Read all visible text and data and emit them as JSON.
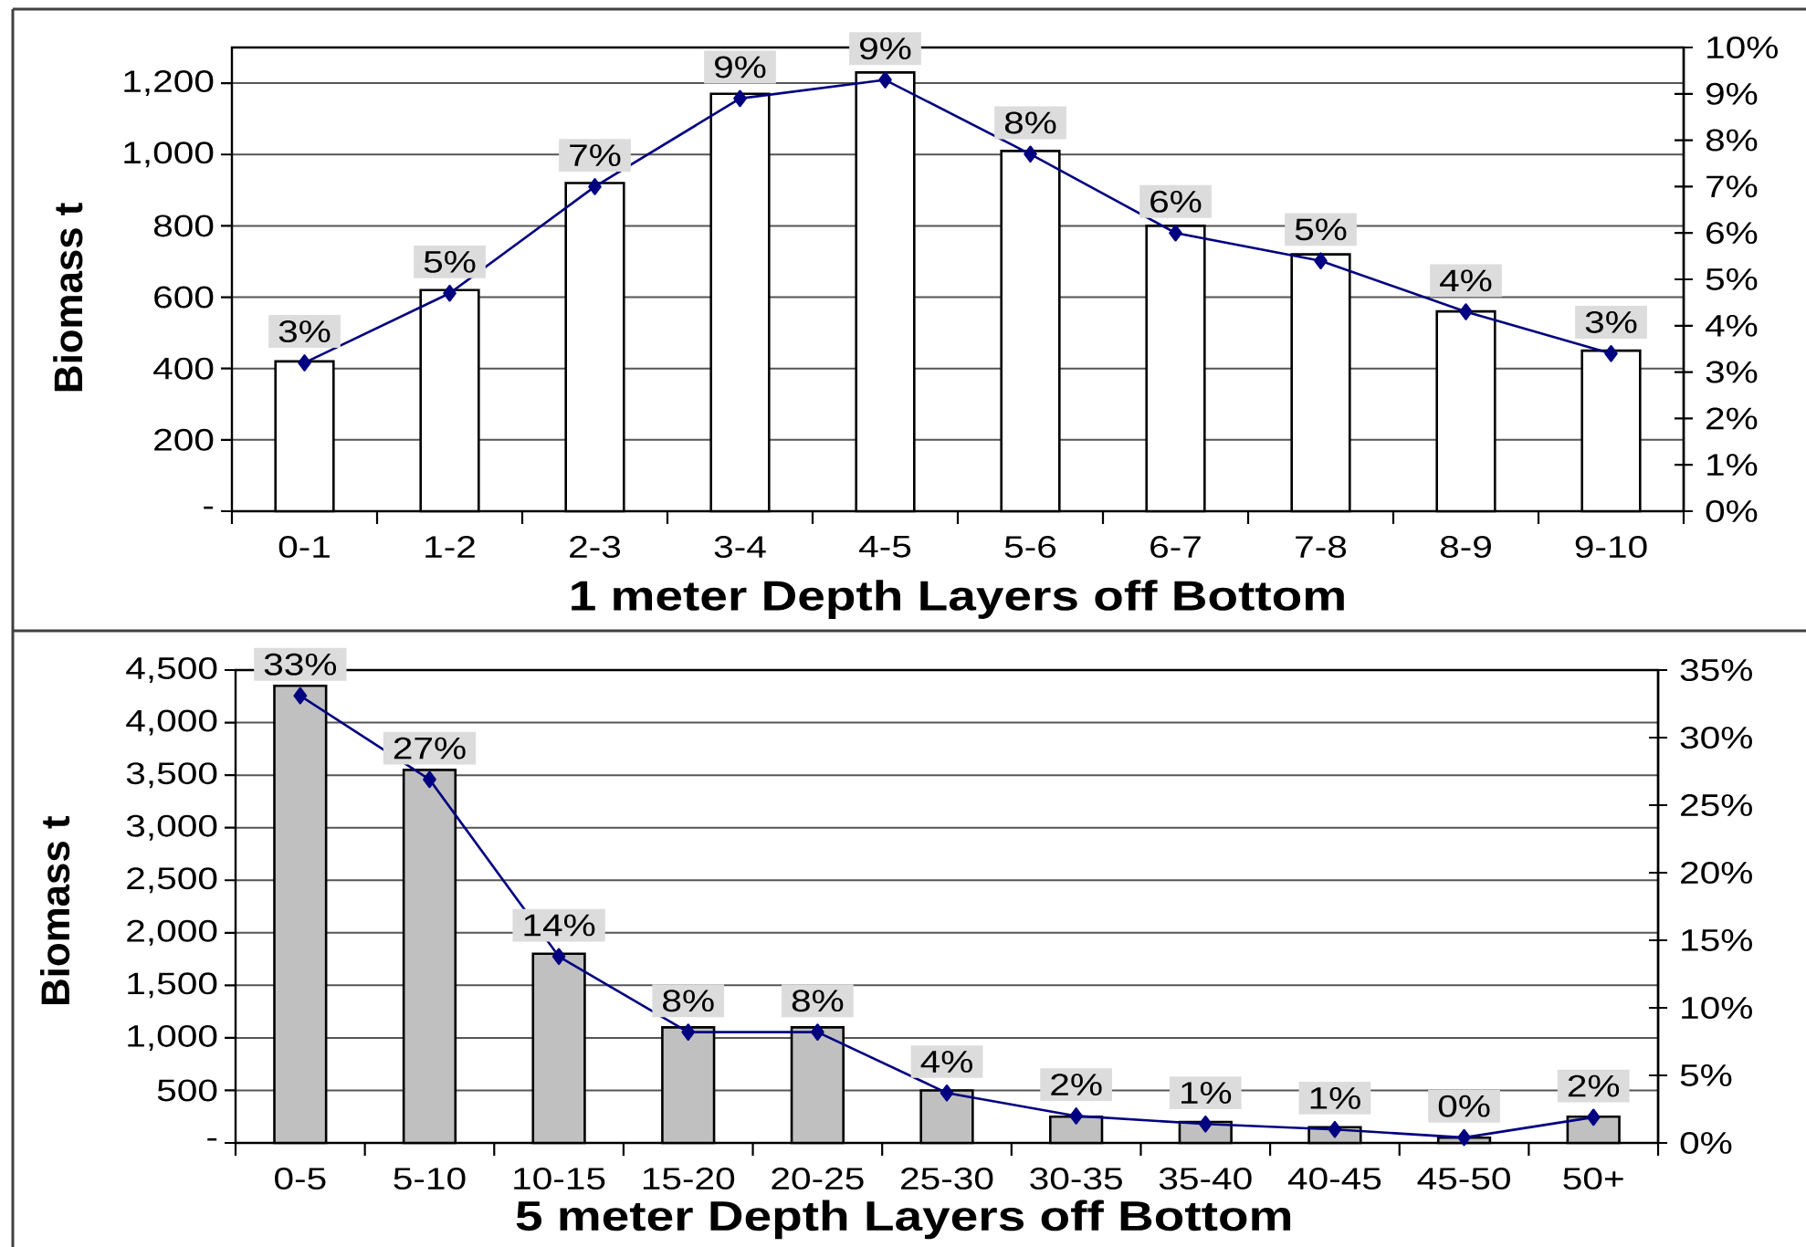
{
  "chart_data": [
    {
      "type": "bar",
      "ylabel": "Biomass t",
      "xlabel": "1 meter Depth Layers off Bottom",
      "categories": [
        "0-1",
        "1-2",
        "2-3",
        "3-4",
        "4-5",
        "5-6",
        "6-7",
        "7-8",
        "8-9",
        "9-10"
      ],
      "series": [
        {
          "color": "#ffffff",
          "values": [
            420,
            620,
            920,
            1170,
            1230,
            1010,
            800,
            720,
            560,
            450
          ]
        },
        {
          "type": "line",
          "axis": "y2",
          "color": "#000080",
          "marker": "diamond",
          "values": [
            3.2,
            4.7,
            7.0,
            8.9,
            9.3,
            7.7,
            6.0,
            5.4,
            4.3,
            3.4
          ],
          "value_labels": [
            "3%",
            "5%",
            "7%",
            "9%",
            "9%",
            "8%",
            "6%",
            "5%",
            "4%",
            "3%"
          ]
        }
      ],
      "ylim": [
        0,
        1300
      ],
      "yticks": [
        {
          "value": 0,
          "label": "-"
        },
        200,
        400,
        600,
        800,
        {
          "value": 1000,
          "label": "1,000"
        },
        {
          "value": 1200,
          "label": "1,200"
        }
      ],
      "y2lim": [
        0,
        10
      ],
      "y2ticks": [
        {
          "value": 0,
          "label": "0%"
        },
        {
          "value": 1,
          "label": "1%"
        },
        {
          "value": 2,
          "label": "2%"
        },
        {
          "value": 3,
          "label": "3%"
        },
        {
          "value": 4,
          "label": "4%"
        },
        {
          "value": 5,
          "label": "5%"
        },
        {
          "value": 6,
          "label": "6%"
        },
        {
          "value": 7,
          "label": "7%"
        },
        {
          "value": 8,
          "label": "8%"
        },
        {
          "value": 9,
          "label": "9%"
        },
        {
          "value": 10,
          "label": "10%"
        }
      ],
      "grid": "y"
    },
    {
      "type": "bar",
      "ylabel": "Biomass t",
      "xlabel": "5 meter Depth Layers off Bottom",
      "categories": [
        "0-5",
        "5-10",
        "10-15",
        "15-20",
        "20-25",
        "25-30",
        "30-35",
        "35-40",
        "40-45",
        "45-50",
        "50+"
      ],
      "series": [
        {
          "color": "#c0c0c0",
          "values": [
            4350,
            3550,
            1800,
            1100,
            1100,
            500,
            250,
            200,
            150,
            50,
            250
          ]
        },
        {
          "type": "line",
          "axis": "y2",
          "color": "#000080",
          "marker": "diamond",
          "values": [
            33.1,
            26.9,
            13.8,
            8.2,
            8.2,
            3.7,
            2.0,
            1.4,
            1.0,
            0.4,
            1.9
          ],
          "value_labels": [
            "33%",
            "27%",
            "14%",
            "8%",
            "8%",
            "4%",
            "2%",
            "1%",
            "1%",
            "0%",
            "2%"
          ]
        }
      ],
      "ylim": [
        0,
        4500
      ],
      "yticks": [
        {
          "value": 0,
          "label": "-"
        },
        500,
        {
          "value": 1000,
          "label": "1,000"
        },
        {
          "value": 1500,
          "label": "1,500"
        },
        {
          "value": 2000,
          "label": "2,000"
        },
        {
          "value": 2500,
          "label": "2,500"
        },
        {
          "value": 3000,
          "label": "3,000"
        },
        {
          "value": 3500,
          "label": "3,500"
        },
        {
          "value": 4000,
          "label": "4,000"
        },
        {
          "value": 4500,
          "label": "4,500"
        }
      ],
      "y2lim": [
        0,
        35
      ],
      "y2ticks": [
        {
          "value": 0,
          "label": "0%"
        },
        {
          "value": 5,
          "label": "5%"
        },
        {
          "value": 10,
          "label": "10%"
        },
        {
          "value": 15,
          "label": "15%"
        },
        {
          "value": 20,
          "label": "20%"
        },
        {
          "value": 25,
          "label": "25%"
        },
        {
          "value": 30,
          "label": "30%"
        },
        {
          "value": 35,
          "label": "35%"
        }
      ],
      "grid": "y"
    }
  ]
}
